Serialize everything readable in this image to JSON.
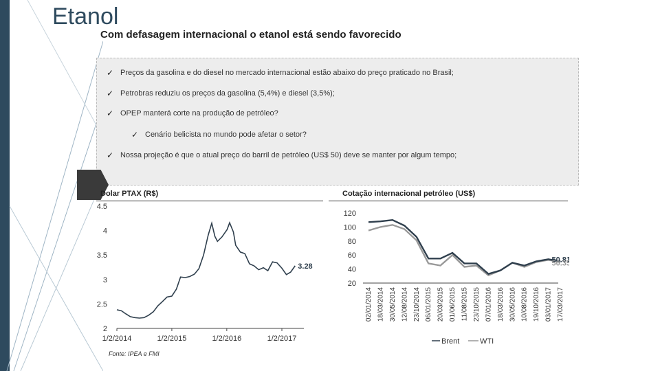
{
  "header": {
    "title": "Etanol",
    "subtitle": "Com defasagem internacional o etanol está sendo favorecido"
  },
  "bullets": [
    {
      "text": "Preços da gasolina e do diesel no mercado internacional estão abaixo do preço praticado no Brasil;",
      "level": 1
    },
    {
      "text": "Petrobras  reduziu os preços da gasolina (5,4%) e diesel (3,5%);",
      "level": 1
    },
    {
      "text": "OPEP manterá corte na produção de petróleo?",
      "level": 1
    },
    {
      "text": "Cenário belicista no mundo pode afetar o setor?",
      "level": 2
    },
    {
      "text": "Nossa projeção é que o atual preço do barril de petróleo (US$ 50) deve se manter por algum tempo;",
      "level": 1
    }
  ],
  "check_symbol": "✓",
  "source": "Fonte: IPEA e FMI",
  "colors": {
    "brand": "#2e4a5e",
    "brent": "#2f3f4d",
    "wti": "#999999",
    "dollar": "#2f3f4d"
  },
  "chart_data": [
    {
      "type": "line",
      "title": "Dolar PTAX (R$)",
      "x_ticks": [
        "1/2/2014",
        "1/2/2015",
        "1/2/2016",
        "1/2/2017"
      ],
      "y_ticks": [
        "2",
        "2.5",
        "3",
        "3.5",
        "4",
        "4.5"
      ],
      "ylim": [
        2,
        4.5
      ],
      "end_label": "3.28",
      "series": [
        {
          "x": [
            "2014-01-02",
            "2014-02-01",
            "2014-03-01",
            "2014-04-01",
            "2014-05-01",
            "2014-06-01",
            "2014-07-01",
            "2014-08-01",
            "2014-09-01",
            "2014-10-01",
            "2014-11-01",
            "2014-12-01",
            "2015-01-02",
            "2015-02-01",
            "2015-03-01",
            "2015-04-01",
            "2015-05-01",
            "2015-06-01",
            "2015-07-01",
            "2015-08-01",
            "2015-09-01",
            "2015-09-24",
            "2015-10-15",
            "2015-11-01",
            "2015-12-01",
            "2016-01-04",
            "2016-01-21",
            "2016-02-15",
            "2016-03-01",
            "2016-04-01",
            "2016-05-01",
            "2016-06-01",
            "2016-07-01",
            "2016-08-01",
            "2016-09-01",
            "2016-10-01",
            "2016-11-01",
            "2016-12-01",
            "2017-01-02",
            "2017-02-01",
            "2017-03-01",
            "2017-03-31"
          ],
          "values": [
            2.38,
            2.36,
            2.3,
            2.24,
            2.22,
            2.21,
            2.22,
            2.27,
            2.34,
            2.46,
            2.55,
            2.64,
            2.66,
            2.8,
            3.05,
            3.04,
            3.06,
            3.11,
            3.22,
            3.5,
            3.91,
            4.15,
            3.88,
            3.78,
            3.87,
            4.02,
            4.16,
            3.97,
            3.7,
            3.56,
            3.53,
            3.32,
            3.28,
            3.2,
            3.24,
            3.18,
            3.36,
            3.34,
            3.23,
            3.1,
            3.15,
            3.28
          ]
        }
      ]
    },
    {
      "type": "line",
      "title": "Cotação internacional petróleo (US$)",
      "categories": [
        "02/01/2014",
        "18/03/2014",
        "30/05/2014",
        "12/08/2014",
        "23/10/2014",
        "06/01/2015",
        "20/03/2015",
        "01/06/2015",
        "11/08/2015",
        "23/10/2015",
        "07/01/2016",
        "18/03/2016",
        "30/05/2016",
        "10/08/2016",
        "19/10/2016",
        "03/01/2017",
        "17/03/2017"
      ],
      "y_ticks": [
        "20",
        "40",
        "60",
        "80",
        "100",
        "120"
      ],
      "ylim": [
        20,
        120
      ],
      "end_labels": {
        "Brent": "50.81",
        "WTI": "50.35"
      },
      "series": [
        {
          "name": "Brent",
          "values": [
            107,
            108,
            110,
            102,
            86,
            55,
            55,
            63,
            48,
            48,
            33,
            38,
            49,
            45,
            51,
            54,
            51
          ]
        },
        {
          "name": "WTI",
          "values": [
            95,
            100,
            103,
            97,
            81,
            48,
            45,
            60,
            43,
            45,
            31,
            38,
            49,
            43,
            50,
            53,
            50
          ]
        }
      ]
    }
  ]
}
